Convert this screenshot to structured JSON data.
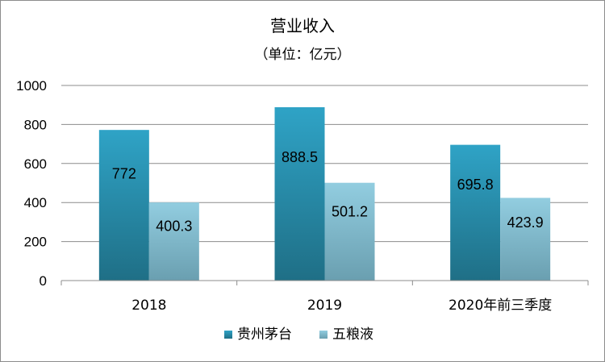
{
  "chart_data": {
    "type": "bar",
    "title": "营业收入",
    "subtitle": "（单位：亿元）",
    "categories": [
      "2018",
      "2019",
      "2020年前三季度"
    ],
    "series": [
      {
        "name": "贵州茅台",
        "values": [
          772,
          888.5,
          695.8
        ],
        "labels": [
          "772",
          "888.5",
          "695.8"
        ],
        "color_top": "#2fa3c6",
        "color_bottom": "#1f6f86"
      },
      {
        "name": "五粮液",
        "values": [
          400.3,
          501.2,
          423.9
        ],
        "labels": [
          "400.3",
          "501.2",
          "423.9"
        ],
        "color_top": "#92cde0",
        "color_bottom": "#6a9fb0"
      }
    ],
    "ylim": [
      0,
      1000
    ],
    "yticks": [
      0,
      200,
      400,
      600,
      800,
      1000
    ],
    "grid": true,
    "legend_position": "bottom"
  }
}
